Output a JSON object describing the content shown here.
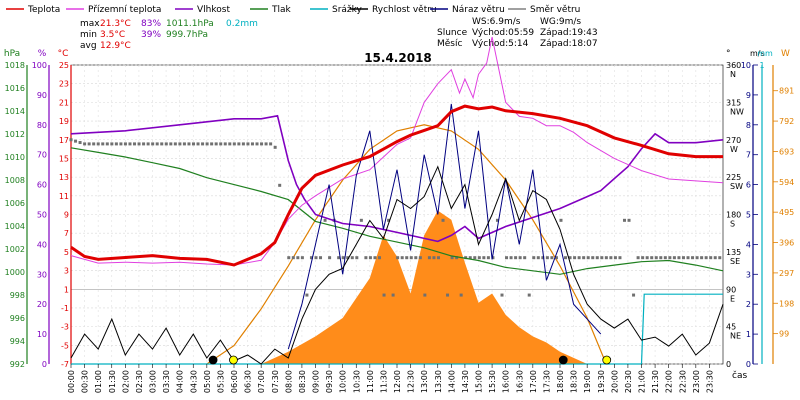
{
  "chart_data": {
    "type": "line",
    "title": "15.4.2018",
    "legend": [
      {
        "name": "Teplota",
        "color": "#e00000"
      },
      {
        "name": "Přízemní teplota",
        "color": "#e040e0"
      },
      {
        "name": "Vlhkost",
        "color": "#8000c0"
      },
      {
        "name": "Tlak",
        "color": "#208020"
      },
      {
        "name": "Srážky",
        "color": "#00b0c0"
      },
      {
        "name": "Rychlost větru",
        "color": "#000000"
      },
      {
        "name": "Náraz větru",
        "color": "#000080"
      },
      {
        "name": "Směr větru",
        "color": "#808080"
      }
    ],
    "stats": {
      "max": {
        "label": "max",
        "temp": "21.3°C",
        "hum": "83%",
        "press": "1011.1hPa",
        "rain": "0.2mm"
      },
      "min": {
        "label": "min",
        "temp": "3.5°C",
        "hum": "39%",
        "press": "999.7hPa"
      },
      "avg": {
        "label": "avg",
        "temp": "12.9°C"
      }
    },
    "info": {
      "ws": "WS:6.9m/s",
      "wg": "WG:9m/s",
      "sun_label": "Slunce",
      "sunrise": "Východ:05:59",
      "sunset": "Západ:19:43",
      "moon_label": "Měsíc",
      "moonrise": "Východ:5:14",
      "moonset": "Západ:18:07"
    },
    "axes": {
      "hPa": {
        "unit": "hPa",
        "ticks": [
          "1018",
          "1016",
          "1014",
          "1012",
          "1010",
          "1008",
          "1006",
          "1004",
          "1002",
          "1000",
          "998",
          "996",
          "994",
          "992"
        ],
        "range": [
          992,
          1018
        ]
      },
      "pct": {
        "unit": "%",
        "ticks": [
          "100",
          "90",
          "80",
          "70",
          "60",
          "50",
          "40",
          "30",
          "20",
          "10",
          "0"
        ],
        "range": [
          0,
          100
        ]
      },
      "degC": {
        "unit": "°C",
        "ticks": [
          "25",
          "23",
          "21",
          "19",
          "17",
          "15",
          "13",
          "11",
          "9",
          "7",
          "5",
          "3",
          "1",
          "-1",
          "-3",
          "-5",
          "-7"
        ],
        "range": [
          -7,
          25
        ]
      },
      "dir": {
        "unit": "°",
        "ticks": [
          "360",
          "315",
          "270",
          "225",
          "180",
          "135",
          "90",
          "45",
          "0"
        ],
        "compass": [
          "N",
          "NW",
          "W",
          "SW",
          "S",
          "SE",
          "E",
          "NE",
          ""
        ]
      },
      "wind": {
        "unit": "m/s",
        "ticks": [
          "10",
          "9",
          "8",
          "7",
          "6",
          "5",
          "4",
          "3",
          "2",
          "1",
          "0"
        ]
      },
      "rain": {
        "unit": "mm",
        "ticks": [
          "1"
        ]
      },
      "solar": {
        "unit": "W",
        "ticks": [
          "891",
          "792",
          "693",
          "594",
          "495",
          "396",
          "297",
          "198",
          "99"
        ]
      },
      "x": {
        "label": "čas",
        "ticks": [
          "00:00",
          "00:30",
          "01:00",
          "01:30",
          "02:00",
          "02:30",
          "03:00",
          "03:30",
          "04:00",
          "04:30",
          "05:00",
          "05:30",
          "06:00",
          "06:30",
          "07:00",
          "07:30",
          "08:00",
          "08:30",
          "09:00",
          "09:30",
          "10:00",
          "10:30",
          "11:00",
          "11:30",
          "12:00",
          "12:30",
          "13:00",
          "13:30",
          "14:00",
          "14:30",
          "15:00",
          "15:30",
          "16:00",
          "16:30",
          "17:00",
          "17:30",
          "18:00",
          "18:30",
          "19:00",
          "19:30",
          "20:00",
          "20:30",
          "21:00",
          "21:30",
          "22:00",
          "22:30",
          "23:00",
          "23:30"
        ]
      }
    },
    "series": {
      "temperature": {
        "x": [
          0,
          0.5,
          1,
          2,
          3,
          4,
          5,
          6,
          7,
          7.5,
          8,
          8.5,
          9,
          10,
          11,
          12,
          12.5,
          13,
          13.5,
          14,
          14.5,
          15,
          15.5,
          16,
          17,
          18,
          19,
          20,
          21,
          22,
          23,
          24
        ],
        "y": [
          5.5,
          4.5,
          4.2,
          4.4,
          4.6,
          4.3,
          4.2,
          3.6,
          4.8,
          6,
          9,
          11.8,
          13.2,
          14.3,
          15.2,
          16.8,
          17.5,
          18,
          18.5,
          20,
          20.6,
          20.3,
          20.5,
          20.1,
          19.8,
          19.3,
          18.5,
          17.2,
          16.4,
          15.5,
          15.2,
          15.2
        ]
      },
      "ground_temp": {
        "x": [
          0,
          1,
          2,
          3,
          4,
          5,
          6,
          7,
          7.5,
          8,
          8.5,
          9,
          10,
          11,
          12,
          12.5,
          13,
          13.5,
          14,
          14.3,
          14.5,
          14.8,
          15,
          15.3,
          15.5,
          16,
          16.5,
          17,
          17.5,
          18,
          18.5,
          19,
          20,
          21,
          22,
          23,
          24
        ],
        "y": [
          4.6,
          3.8,
          3.9,
          3.8,
          3.9,
          3.7,
          3.6,
          4.1,
          6,
          8.5,
          10,
          11,
          12.8,
          13.8,
          16.5,
          17.2,
          21,
          23,
          24.5,
          22,
          23.5,
          21.5,
          24,
          25.2,
          28,
          21,
          19.5,
          19.3,
          18.5,
          18.5,
          17.8,
          16.7,
          15,
          13.7,
          12.8,
          12.6,
          12.4
        ]
      },
      "humidity": {
        "x": [
          0,
          2,
          4,
          6,
          7,
          7.6,
          8,
          8.3,
          8.6,
          9,
          10,
          11,
          12,
          13,
          13.5,
          14,
          14.5,
          15,
          16,
          17,
          18,
          19,
          19.5,
          20,
          20.5,
          21,
          21.5,
          22,
          23,
          24
        ],
        "y": [
          77,
          78,
          80,
          82,
          82,
          83,
          68,
          60,
          55,
          50,
          47,
          46,
          44,
          42,
          41,
          43,
          46,
          42,
          46,
          49,
          52,
          56,
          58,
          62,
          66,
          72,
          77,
          74,
          74,
          75
        ]
      },
      "pressure": {
        "x": [
          0,
          1,
          2,
          3,
          4,
          5,
          6,
          7,
          8,
          9,
          10,
          11,
          12,
          13,
          14,
          15,
          16,
          17,
          18,
          19,
          20,
          21,
          22,
          23,
          24
        ],
        "y": [
          1010.8,
          1010.4,
          1010,
          1009.5,
          1009,
          1008.2,
          1007.6,
          1007,
          1006.3,
          1004.4,
          1003.8,
          1003.1,
          1002.6,
          1002.1,
          1001.4,
          1001,
          1000.4,
          1000.1,
          999.8,
          1000.3,
          1000.6,
          1000.9,
          1001,
          1000.6,
          1000.1
        ]
      },
      "wind_speed": {
        "x": [
          0,
          0.5,
          1,
          1.5,
          2,
          2.5,
          3,
          3.5,
          4,
          4.5,
          5,
          5.5,
          6,
          6.5,
          7,
          7.5,
          8,
          8.5,
          9,
          9.5,
          10,
          10.5,
          11,
          11.5,
          12,
          12.5,
          13,
          13.5,
          14,
          14.5,
          15,
          15.5,
          16,
          16.5,
          17,
          17.5,
          18,
          18.5,
          19,
          19.5,
          20,
          20.5,
          21,
          21.5,
          22,
          22.5,
          23,
          23.5,
          24
        ],
        "y": [
          0.2,
          1,
          0.5,
          1.5,
          0.3,
          1,
          0.5,
          1.2,
          0.3,
          1,
          0.2,
          0.8,
          0.1,
          0.3,
          0,
          0.5,
          0.2,
          1.5,
          2.5,
          3,
          3.2,
          4,
          4.8,
          4.2,
          5.5,
          5.2,
          5.6,
          6.6,
          5.2,
          6,
          4,
          5,
          6.2,
          4.8,
          5.8,
          5.5,
          4.5,
          3,
          2,
          1.5,
          1.2,
          1.5,
          0.8,
          0.9,
          0.6,
          1,
          0.3,
          0.7,
          2
        ]
      },
      "wind_gust": {
        "x": [
          8,
          8.5,
          9,
          9.5,
          10,
          10.5,
          11,
          11.5,
          12,
          12.5,
          13,
          13.5,
          14,
          14.5,
          15,
          15.5,
          16,
          16.5,
          17,
          17.5,
          18,
          18.5,
          19,
          19.5
        ],
        "y": [
          0.5,
          2,
          4,
          6,
          3,
          6.3,
          7.8,
          4.5,
          6.5,
          3.8,
          7,
          5,
          8.7,
          5.2,
          7.8,
          3.5,
          6.2,
          4,
          6.5,
          2.8,
          4,
          2,
          1.5,
          1
        ]
      },
      "wind_dir": {
        "x": [
          0,
          0.5,
          1,
          2,
          3,
          4,
          5,
          6,
          7,
          7.5,
          8,
          8.5,
          9,
          10,
          11,
          12,
          13,
          14,
          15,
          16,
          17,
          18,
          19,
          20,
          21,
          22,
          23,
          24
        ],
        "y": [
          270,
          265,
          265,
          265,
          265,
          265,
          265,
          265,
          265,
          265,
          128,
          128,
          128,
          128,
          128,
          128,
          128,
          128,
          128,
          128,
          128,
          128,
          128,
          128,
          128,
          128,
          128,
          128
        ]
      },
      "solar": {
        "x": [
          5,
          6,
          7,
          8,
          9,
          10,
          11,
          12,
          13,
          14,
          15,
          16,
          17,
          18,
          19,
          19.7
        ],
        "y": [
          0,
          60,
          180,
          320,
          470,
          600,
          700,
          760,
          780,
          760,
          700,
          600,
          470,
          320,
          150,
          0
        ]
      },
      "solar_fill": {
        "x": [
          7,
          8,
          9,
          10,
          11,
          11.5,
          12,
          12.5,
          13,
          13.5,
          14,
          14.5,
          15,
          15.5,
          16,
          16.5,
          17,
          17.5,
          18,
          18.5,
          19
        ],
        "y": [
          0,
          40,
          90,
          150,
          280,
          420,
          350,
          230,
          420,
          500,
          470,
          330,
          200,
          230,
          160,
          120,
          90,
          70,
          40,
          20,
          0
        ]
      },
      "rain_cumulative": {
        "x": [
          0,
          21,
          21.1,
          24
        ],
        "y": [
          0,
          0,
          0.2,
          0.2
        ]
      }
    },
    "markers": [
      {
        "type": "moonrise",
        "x": 5.23,
        "color": "#000000"
      },
      {
        "type": "sunrise",
        "x": 5.98,
        "color": "#ffff00"
      },
      {
        "type": "moonset",
        "x": 18.12,
        "color": "#000000"
      },
      {
        "type": "sunset",
        "x": 19.72,
        "color": "#ffff00"
      }
    ]
  }
}
